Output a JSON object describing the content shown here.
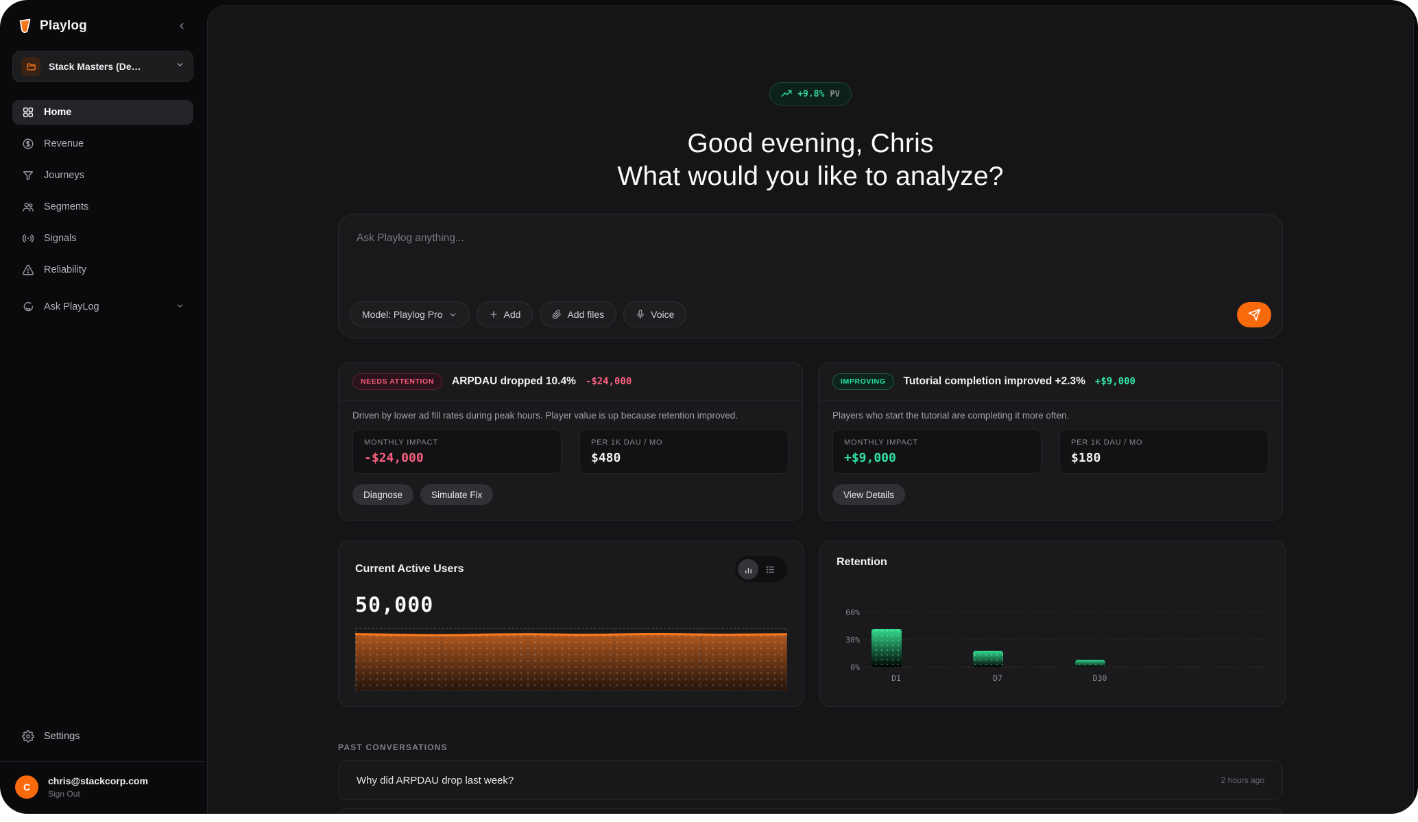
{
  "sidebar": {
    "brand": {
      "name": "Playlog"
    },
    "project": {
      "label": "Stack Masters (De…"
    },
    "nav": [
      {
        "label": "Home",
        "icon": "grid-icon",
        "active": true
      },
      {
        "label": "Revenue",
        "icon": "dollar-circle-icon"
      },
      {
        "label": "Journeys",
        "icon": "funnel-icon"
      },
      {
        "label": "Segments",
        "icon": "users-icon"
      },
      {
        "label": "Signals",
        "icon": "radio-waves-icon"
      },
      {
        "label": "Reliability",
        "icon": "alert-triangle-icon"
      },
      {
        "label": "Ask PlayLog",
        "icon": "chat-bubble-icon",
        "has_chevron": true
      }
    ],
    "settings_label": "Settings",
    "user": {
      "initial": "C",
      "email": "chris@stackcorp.com",
      "signout": "Sign Out"
    }
  },
  "main": {
    "badge": {
      "value": "+9.8%",
      "suffix": "PV"
    },
    "greeting_line1": "Good evening, Chris",
    "greeting_line2": "What would you like to analyze?",
    "prompt": {
      "placeholder": "Ask Playlog anything...",
      "model_button": "Model: Playlog Pro",
      "add_button": "Add",
      "add_files_button": "Add files",
      "voice_button": "Voice"
    },
    "insights": [
      {
        "status": "NEEDS ATTENTION",
        "title": "ARPDAU dropped 10.4%",
        "amount": "-$24,000",
        "description": "Driven by lower ad fill rates during peak hours. Player value is up because retention improved.",
        "metrics": [
          {
            "label": "MONTHLY IMPACT",
            "value": "-$24,000"
          },
          {
            "label": "PER 1K DAU / MO",
            "value": "$480"
          }
        ],
        "actions": [
          "Diagnose",
          "Simulate Fix"
        ]
      },
      {
        "status": "IMPROVING",
        "title": "Tutorial completion improved +2.3%",
        "amount": "+$9,000",
        "description": "Players who start the tutorial are completing it more often.",
        "metrics": [
          {
            "label": "MONTHLY IMPACT",
            "value": "+$9,000"
          },
          {
            "label": "PER 1K DAU / MO",
            "value": "$180"
          }
        ],
        "actions": [
          "View Details"
        ]
      }
    ],
    "active_users": {
      "title": "Current Active Users",
      "value": "50,000"
    },
    "retention": {
      "title": "Retention"
    },
    "past": {
      "heading": "PAST CONVERSATIONS",
      "items": [
        {
          "question": "Why did ARPDAU drop last week?",
          "time": "2 hours ago"
        }
      ]
    }
  },
  "chart_data": [
    {
      "type": "area",
      "title": "Current Active Users",
      "value_label": "50,000",
      "values": [
        50300,
        50000,
        49600,
        49300,
        49200,
        49400,
        49800,
        50100,
        50200,
        50000,
        49700,
        49600,
        49900,
        50200,
        50400,
        50200,
        49900,
        49700,
        49800,
        50000,
        50200
      ],
      "ylim": [
        0,
        55500
      ],
      "grid": "dashed-frame-with-verticals",
      "line_color": "#ff7a1c"
    },
    {
      "type": "bar",
      "title": "Retention",
      "categories": [
        "D1",
        "D7",
        "D30"
      ],
      "values": [
        42,
        18,
        8
      ],
      "yticks": [
        "0%",
        "30%",
        "60%"
      ],
      "ylim": [
        0,
        60
      ],
      "bar_color": "#2dd488",
      "grid": "dashed-horizontal"
    }
  ],
  "colors": {
    "accent_orange": "#f96a0d",
    "positive_green": "#31e3a3",
    "negative_pink": "#fb5f7e",
    "badge_green": "#34d399"
  }
}
